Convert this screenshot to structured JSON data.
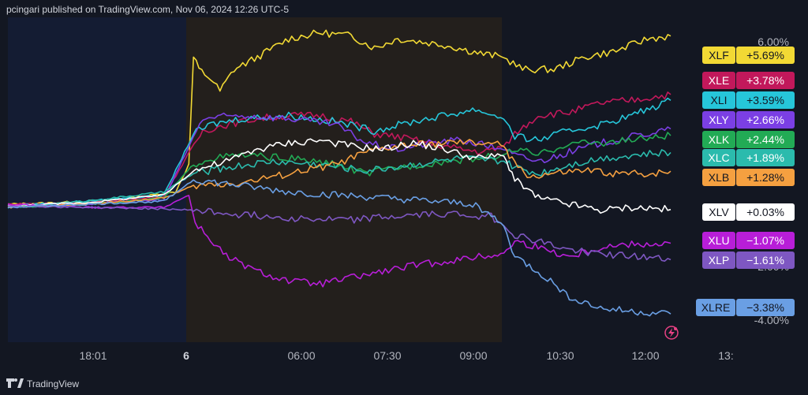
{
  "header": {
    "published": "pcingari published on TradingView.com, Nov 06, 2024 12:26 UTC-5"
  },
  "footer": {
    "brand": "TradingView"
  },
  "colors": {
    "background": "#131722",
    "premarket_overnight": "#141c33",
    "premarket_session": "#231f1c",
    "axis_text": "#b2b5be"
  },
  "chart_data": {
    "type": "line",
    "title": "",
    "xlabel": "",
    "ylabel": "",
    "x_ticks": [
      "18:01",
      "6",
      "06:00",
      "07:30",
      "09:00",
      "10:30",
      "12:00",
      "13:"
    ],
    "y_ticks": [
      "6.00%",
      "2.00%",
      "-4.00%"
    ],
    "ylim": [
      -4.3,
      6.3
    ],
    "legend": "right",
    "series": [
      {
        "name": "XLF",
        "label": "+5.69%",
        "color": "#f2d934",
        "text_color": "#131722",
        "points": [
          [
            0,
            0.2
          ],
          [
            60,
            0.25
          ],
          [
            140,
            0.35
          ],
          [
            215,
            0.6
          ],
          [
            232,
            1.5
          ],
          [
            238,
            5.0
          ],
          [
            245,
            4.6
          ],
          [
            260,
            4.3
          ],
          [
            272,
            3.9
          ],
          [
            290,
            4.6
          ],
          [
            320,
            5.0
          ],
          [
            360,
            5.6
          ],
          [
            400,
            5.8
          ],
          [
            440,
            5.7
          ],
          [
            470,
            5.3
          ],
          [
            500,
            5.6
          ],
          [
            560,
            5.4
          ],
          [
            610,
            5.1
          ],
          [
            636,
            5.0
          ],
          [
            660,
            4.6
          ],
          [
            700,
            4.6
          ],
          [
            740,
            5.0
          ],
          [
            780,
            5.2
          ],
          [
            820,
            5.6
          ],
          [
            850,
            5.69
          ]
        ]
      },
      {
        "name": "XLE",
        "label": "+3.78%",
        "color": "#c2185b",
        "text_color": "#ffffff",
        "points": [
          [
            0,
            0.2
          ],
          [
            100,
            0.25
          ],
          [
            200,
            0.45
          ],
          [
            235,
            2.0
          ],
          [
            250,
            2.6
          ],
          [
            280,
            2.8
          ],
          [
            320,
            3.0
          ],
          [
            360,
            3.1
          ],
          [
            400,
            3.1
          ],
          [
            440,
            2.9
          ],
          [
            470,
            2.5
          ],
          [
            500,
            2.4
          ],
          [
            540,
            2.2
          ],
          [
            580,
            2.0
          ],
          [
            610,
            1.9
          ],
          [
            636,
            2.1
          ],
          [
            650,
            2.5
          ],
          [
            680,
            3.1
          ],
          [
            720,
            3.2
          ],
          [
            760,
            3.5
          ],
          [
            800,
            3.6
          ],
          [
            850,
            3.78
          ]
        ]
      },
      {
        "name": "XLI",
        "label": "+3.59%",
        "color": "#26c6da",
        "text_color": "#131722",
        "points": [
          [
            0,
            0.15
          ],
          [
            100,
            0.3
          ],
          [
            200,
            0.5
          ],
          [
            238,
            2.5
          ],
          [
            260,
            2.8
          ],
          [
            300,
            3.0
          ],
          [
            360,
            3.1
          ],
          [
            420,
            2.9
          ],
          [
            470,
            2.6
          ],
          [
            520,
            2.9
          ],
          [
            560,
            3.1
          ],
          [
            600,
            3.3
          ],
          [
            636,
            3.0
          ],
          [
            650,
            2.4
          ],
          [
            680,
            2.3
          ],
          [
            720,
            2.6
          ],
          [
            760,
            2.8
          ],
          [
            800,
            3.1
          ],
          [
            850,
            3.59
          ]
        ]
      },
      {
        "name": "XLY",
        "label": "+2.66%",
        "color": "#7b3fe4",
        "text_color": "#ffffff",
        "points": [
          [
            0,
            0.1
          ],
          [
            100,
            0.2
          ],
          [
            200,
            0.35
          ],
          [
            238,
            2.4
          ],
          [
            250,
            3.0
          ],
          [
            300,
            3.1
          ],
          [
            360,
            3.0
          ],
          [
            420,
            2.8
          ],
          [
            460,
            2.2
          ],
          [
            500,
            2.0
          ],
          [
            540,
            2.2
          ],
          [
            580,
            2.3
          ],
          [
            636,
            2.0
          ],
          [
            650,
            1.8
          ],
          [
            680,
            1.6
          ],
          [
            720,
            1.9
          ],
          [
            760,
            2.2
          ],
          [
            800,
            2.4
          ],
          [
            850,
            2.66
          ]
        ]
      },
      {
        "name": "XLK",
        "label": "+2.44%",
        "color": "#22ab55",
        "text_color": "#ffffff",
        "points": [
          [
            0,
            0.1
          ],
          [
            100,
            0.2
          ],
          [
            200,
            0.4
          ],
          [
            238,
            1.5
          ],
          [
            260,
            1.7
          ],
          [
            300,
            1.8
          ],
          [
            360,
            1.7
          ],
          [
            420,
            1.5
          ],
          [
            460,
            1.2
          ],
          [
            500,
            1.4
          ],
          [
            560,
            1.6
          ],
          [
            600,
            1.7
          ],
          [
            636,
            1.8
          ],
          [
            650,
            2.0
          ],
          [
            680,
            1.8
          ],
          [
            720,
            2.2
          ],
          [
            760,
            2.2
          ],
          [
            800,
            2.3
          ],
          [
            850,
            2.44
          ]
        ]
      },
      {
        "name": "XLC",
        "label": "+1.89%",
        "color": "#2bbbad",
        "text_color": "#ffffff",
        "points": [
          [
            0,
            0.1
          ],
          [
            100,
            0.3
          ],
          [
            200,
            0.6
          ],
          [
            238,
            1.2
          ],
          [
            280,
            1.4
          ],
          [
            340,
            1.6
          ],
          [
            400,
            1.5
          ],
          [
            460,
            1.3
          ],
          [
            520,
            1.5
          ],
          [
            580,
            1.7
          ],
          [
            636,
            1.6
          ],
          [
            650,
            1.4
          ],
          [
            680,
            1.2
          ],
          [
            720,
            1.5
          ],
          [
            760,
            1.7
          ],
          [
            800,
            1.8
          ],
          [
            850,
            1.89
          ]
        ]
      },
      {
        "name": "XLB",
        "label": "+1.28%",
        "color": "#f5a040",
        "text_color": "#131722",
        "points": [
          [
            0,
            0.1
          ],
          [
            100,
            0.2
          ],
          [
            200,
            0.4
          ],
          [
            238,
            0.8
          ],
          [
            300,
            0.9
          ],
          [
            360,
            1.2
          ],
          [
            420,
            1.5
          ],
          [
            460,
            1.9
          ],
          [
            500,
            2.1
          ],
          [
            560,
            2.2
          ],
          [
            620,
            2.2
          ],
          [
            636,
            2.1
          ],
          [
            650,
            1.5
          ],
          [
            670,
            1.1
          ],
          [
            700,
            1.2
          ],
          [
            740,
            1.3
          ],
          [
            780,
            1.2
          ],
          [
            820,
            1.2
          ],
          [
            850,
            1.28
          ]
        ]
      },
      {
        "name": "XLV",
        "label": "+0.03%",
        "color": "#ffffff",
        "text_color": "#131722",
        "points": [
          [
            0,
            0.15
          ],
          [
            100,
            0.25
          ],
          [
            200,
            0.5
          ],
          [
            238,
            1.3
          ],
          [
            280,
            1.6
          ],
          [
            320,
            2.0
          ],
          [
            360,
            2.2
          ],
          [
            400,
            2.3
          ],
          [
            440,
            2.1
          ],
          [
            480,
            2.0
          ],
          [
            520,
            2.2
          ],
          [
            560,
            2.0
          ],
          [
            600,
            1.7
          ],
          [
            636,
            1.8
          ],
          [
            650,
            1.0
          ],
          [
            680,
            0.4
          ],
          [
            720,
            0.2
          ],
          [
            760,
            0.0
          ],
          [
            800,
            0.1
          ],
          [
            850,
            0.03
          ]
        ]
      },
      {
        "name": "XLU",
        "label": "−1.07%",
        "color": "#b81ed8",
        "text_color": "#ffffff",
        "points": [
          [
            0,
            0.2
          ],
          [
            100,
            0.1
          ],
          [
            200,
            0.1
          ],
          [
            232,
            0.5
          ],
          [
            240,
            -0.4
          ],
          [
            280,
            -1.5
          ],
          [
            320,
            -2.0
          ],
          [
            360,
            -2.3
          ],
          [
            400,
            -2.4
          ],
          [
            440,
            -2.2
          ],
          [
            480,
            -2.0
          ],
          [
            520,
            -1.8
          ],
          [
            580,
            -1.6
          ],
          [
            636,
            -1.4
          ],
          [
            650,
            -1.0
          ],
          [
            680,
            -1.2
          ],
          [
            720,
            -1.5
          ],
          [
            760,
            -1.2
          ],
          [
            800,
            -1.1
          ],
          [
            850,
            -1.07
          ]
        ]
      },
      {
        "name": "XLP",
        "label": "−1.61%",
        "color": "#7e57c2",
        "text_color": "#ffffff",
        "points": [
          [
            0,
            0.15
          ],
          [
            100,
            0.1
          ],
          [
            200,
            0.05
          ],
          [
            238,
            0.0
          ],
          [
            280,
            -0.1
          ],
          [
            340,
            -0.2
          ],
          [
            400,
            -0.3
          ],
          [
            440,
            -0.3
          ],
          [
            500,
            -0.2
          ],
          [
            560,
            -0.1
          ],
          [
            620,
            -0.2
          ],
          [
            636,
            -0.5
          ],
          [
            650,
            -0.8
          ],
          [
            680,
            -1.0
          ],
          [
            720,
            -1.3
          ],
          [
            760,
            -1.4
          ],
          [
            800,
            -1.5
          ],
          [
            850,
            -1.61
          ]
        ]
      },
      {
        "name": "XLRE",
        "label": "−3.38%",
        "color": "#6a9fe4",
        "text_color": "#131722",
        "points": [
          [
            0,
            0.1
          ],
          [
            100,
            0.2
          ],
          [
            200,
            0.3
          ],
          [
            238,
            1.0
          ],
          [
            300,
            0.8
          ],
          [
            360,
            0.6
          ],
          [
            420,
            0.5
          ],
          [
            480,
            0.4
          ],
          [
            540,
            0.3
          ],
          [
            600,
            0.2
          ],
          [
            636,
            -0.5
          ],
          [
            650,
            -1.5
          ],
          [
            680,
            -2.0
          ],
          [
            720,
            -2.8
          ],
          [
            760,
            -3.2
          ],
          [
            800,
            -3.3
          ],
          [
            850,
            -3.38
          ]
        ]
      }
    ],
    "scale_note": "x values are minutes of session time starting at 17:00 previous day projected on a compressed axis; y values in percent change"
  }
}
